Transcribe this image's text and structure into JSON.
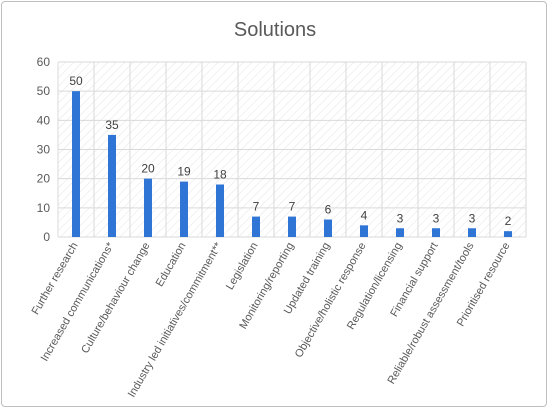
{
  "chart_data": {
    "type": "bar",
    "title": "Solutions",
    "xlabel": "",
    "ylabel": "",
    "ylim": [
      0,
      60
    ],
    "yticks": [
      0,
      10,
      20,
      30,
      40,
      50,
      60
    ],
    "grid": true,
    "legend": "none",
    "bar_color": "#2e75d6",
    "categories": [
      "Further research",
      "Increased communications*",
      "Culture/behaviour change",
      "Education",
      "Industry led initiatives/commitment**",
      "Legislation",
      "Monitoring/reporting",
      "Updated training",
      "Objective/holistic response",
      "Regulation/licensing",
      "Financial support",
      "Reliable/robust assessment/tools",
      "Prioritised resource"
    ],
    "values": [
      50,
      35,
      20,
      19,
      18,
      7,
      7,
      6,
      4,
      3,
      3,
      3,
      2
    ]
  }
}
